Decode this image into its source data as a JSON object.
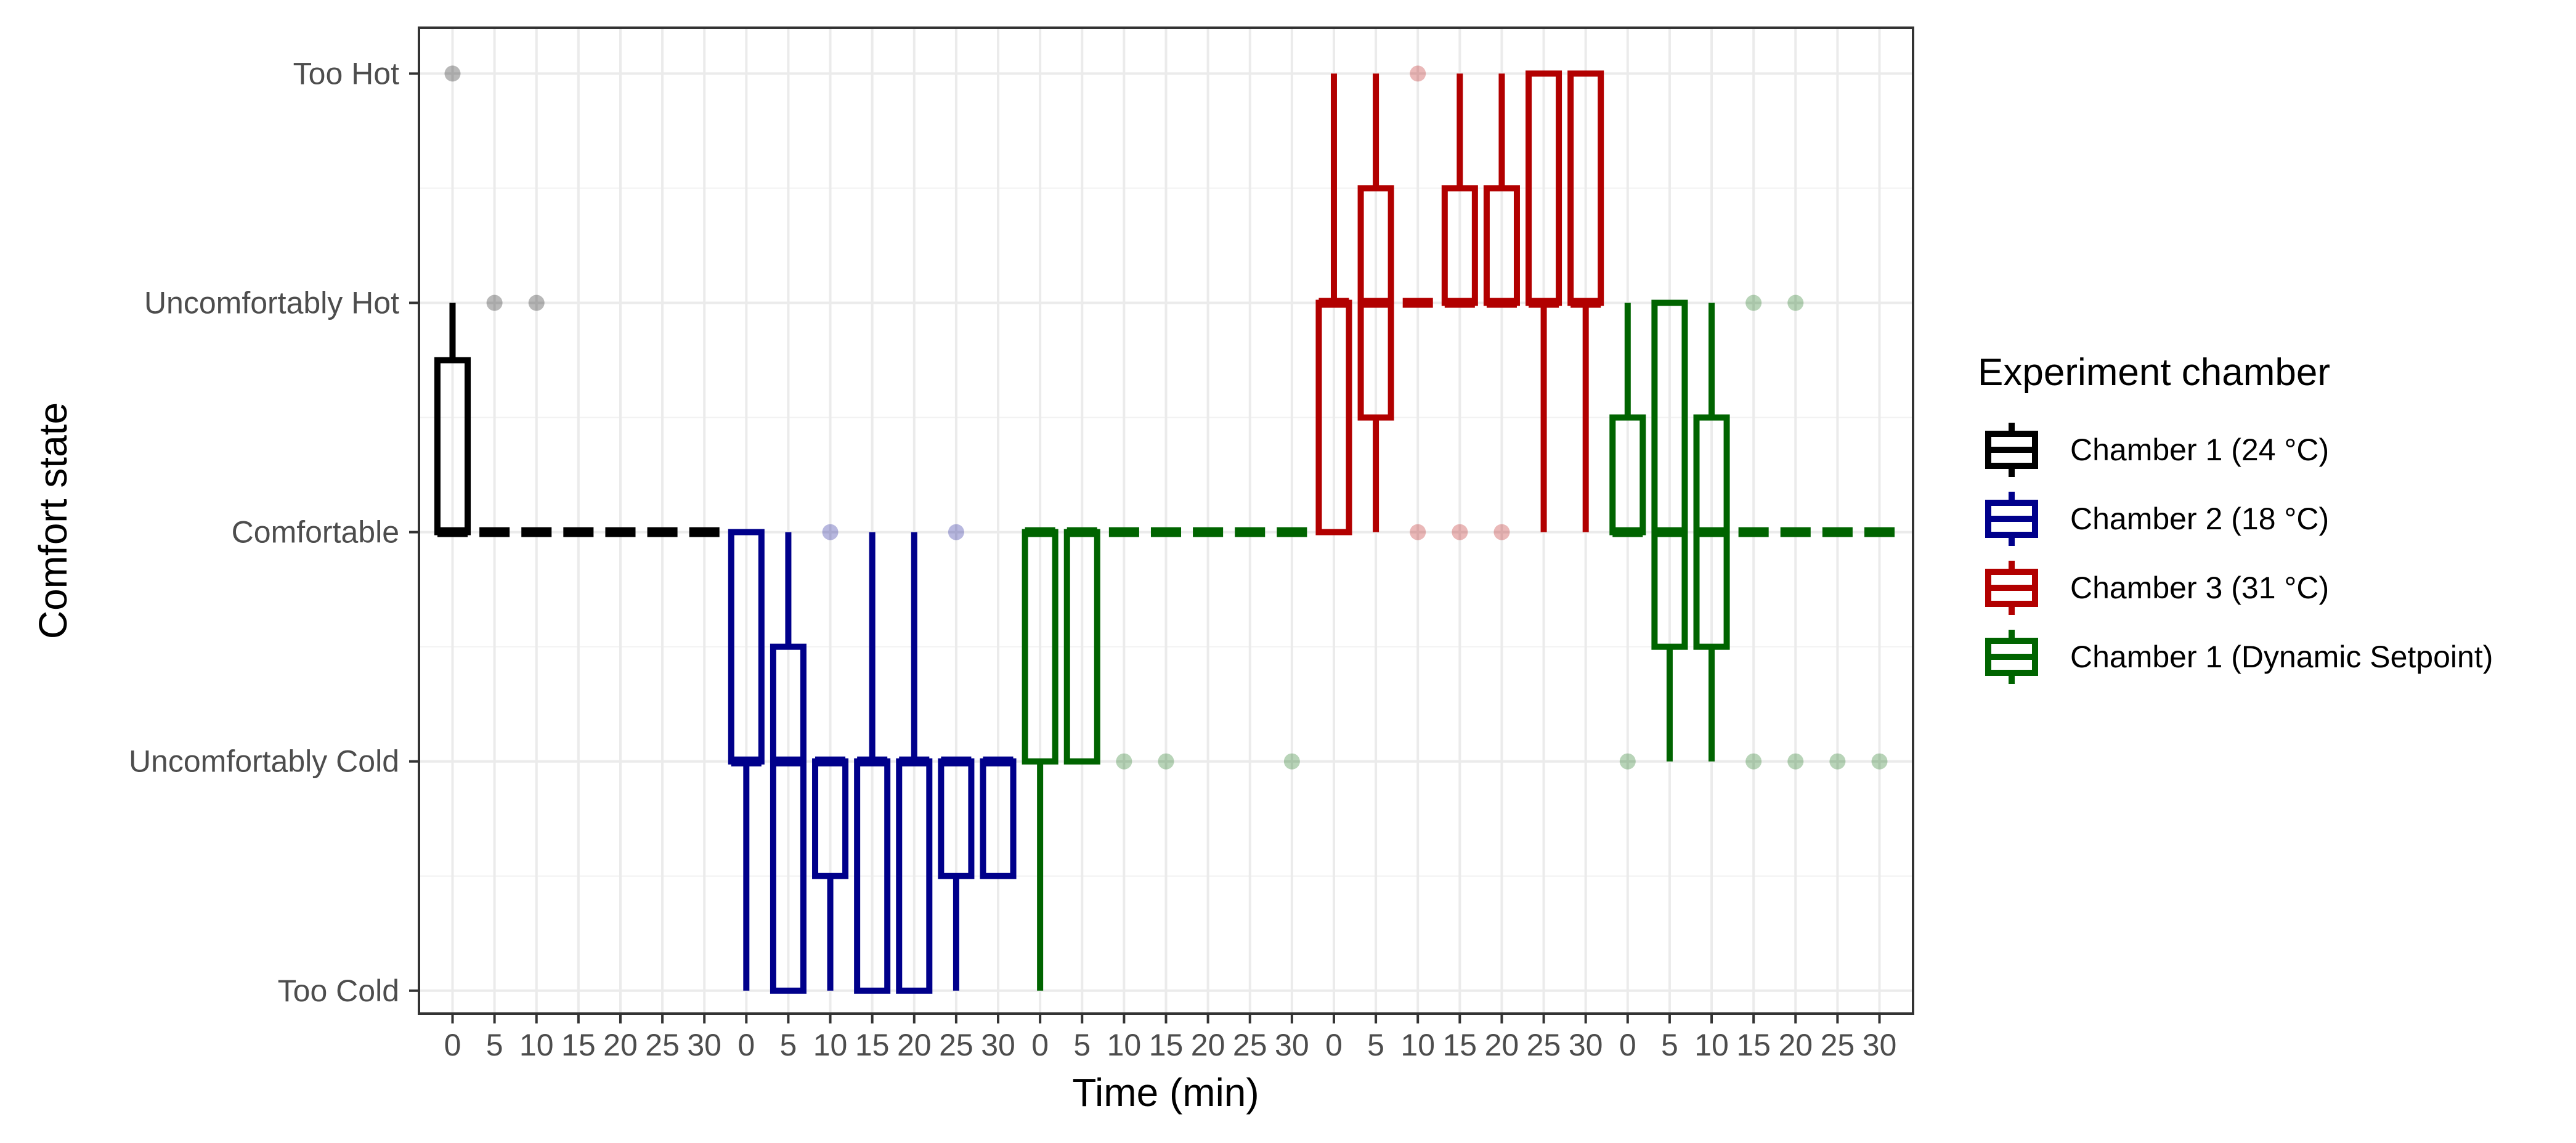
{
  "chart_data": {
    "type": "boxplot",
    "xlabel": "Time (min)",
    "ylabel": "Comfort state",
    "y_categories": [
      "Too Cold",
      "Uncomfortably Cold",
      "Comfortable",
      "Uncomfortably Hot",
      "Too Hot"
    ],
    "x_tick_labels": [
      "0",
      "5",
      "10",
      "15",
      "20",
      "25",
      "30"
    ],
    "ylim": [
      -0.1,
      4.2
    ],
    "grid": true,
    "legend": {
      "title": "Experiment chamber",
      "placement": "right",
      "entries": [
        "Chamber 1 (24 °C)",
        "Chamber 2 (18 °C)",
        "Chamber 3 (31 °C)",
        "Chamber 1 (Dynamic Setpoint)"
      ]
    },
    "series": [
      {
        "name": "Chamber 1 (24 °C)",
        "color": "#000000",
        "boxes": [
          {
            "t": 0,
            "ymin": 2,
            "q1": 2,
            "median": 2,
            "q3": 2.75,
            "ymax": 3
          },
          {
            "t": 5,
            "ymin": 2,
            "q1": 2,
            "median": 2,
            "q3": 2,
            "ymax": 2
          },
          {
            "t": 10,
            "ymin": 2,
            "q1": 2,
            "median": 2,
            "q3": 2,
            "ymax": 2
          },
          {
            "t": 15,
            "ymin": 2,
            "q1": 2,
            "median": 2,
            "q3": 2,
            "ymax": 2
          },
          {
            "t": 20,
            "ymin": 2,
            "q1": 2,
            "median": 2,
            "q3": 2,
            "ymax": 2
          },
          {
            "t": 25,
            "ymin": 2,
            "q1": 2,
            "median": 2,
            "q3": 2,
            "ymax": 2
          },
          {
            "t": 30,
            "ymin": 2,
            "q1": 2,
            "median": 2,
            "q3": 2,
            "ymax": 2
          }
        ],
        "outliers": [
          {
            "t": 0,
            "y": 4
          },
          {
            "t": 5,
            "y": 3
          },
          {
            "t": 10,
            "y": 3
          }
        ]
      },
      {
        "name": "Chamber 2 (18 °C)",
        "color": "#00008b",
        "boxes": [
          {
            "t": 0,
            "ymin": 0,
            "q1": 1,
            "median": 1,
            "q3": 2,
            "ymax": 2
          },
          {
            "t": 5,
            "ymin": 0,
            "q1": 0,
            "median": 1,
            "q3": 1.5,
            "ymax": 2
          },
          {
            "t": 10,
            "ymin": 0,
            "q1": 0.5,
            "median": 1,
            "q3": 1,
            "ymax": 1
          },
          {
            "t": 15,
            "ymin": 0,
            "q1": 0,
            "median": 1,
            "q3": 1,
            "ymax": 2
          },
          {
            "t": 20,
            "ymin": 0,
            "q1": 0,
            "median": 1,
            "q3": 1,
            "ymax": 2
          },
          {
            "t": 25,
            "ymin": 0,
            "q1": 0.5,
            "median": 1,
            "q3": 1,
            "ymax": 1
          },
          {
            "t": 30,
            "ymin": 0.5,
            "q1": 0.5,
            "median": 1,
            "q3": 1,
            "ymax": 1
          }
        ],
        "outliers": [
          {
            "t": 10,
            "y": 2
          },
          {
            "t": 25,
            "y": 2
          }
        ]
      },
      {
        "name": "Chamber 1 (Dynamic Setpoint)",
        "color": "#006400",
        "boxes": [
          {
            "t": 0,
            "ymin": 0,
            "q1": 1,
            "median": 2,
            "q3": 2,
            "ymax": 2
          },
          {
            "t": 5,
            "ymin": 1,
            "q1": 1,
            "median": 2,
            "q3": 2,
            "ymax": 2
          },
          {
            "t": 10,
            "ymin": 2,
            "q1": 2,
            "median": 2,
            "q3": 2,
            "ymax": 2
          },
          {
            "t": 15,
            "ymin": 2,
            "q1": 2,
            "median": 2,
            "q3": 2,
            "ymax": 2
          },
          {
            "t": 20,
            "ymin": 2,
            "q1": 2,
            "median": 2,
            "q3": 2,
            "ymax": 2
          },
          {
            "t": 25,
            "ymin": 2,
            "q1": 2,
            "median": 2,
            "q3": 2,
            "ymax": 2
          },
          {
            "t": 30,
            "ymin": 2,
            "q1": 2,
            "median": 2,
            "q3": 2,
            "ymax": 2
          }
        ],
        "outliers": [
          {
            "t": 10,
            "y": 1
          },
          {
            "t": 15,
            "y": 1
          },
          {
            "t": 30,
            "y": 1
          }
        ]
      },
      {
        "name": "Chamber 3 (31 °C)",
        "color": "#b20000",
        "boxes": [
          {
            "t": 0,
            "ymin": 2,
            "q1": 2,
            "median": 3,
            "q3": 3,
            "ymax": 4
          },
          {
            "t": 5,
            "ymin": 2,
            "q1": 2.5,
            "median": 3,
            "q3": 3.5,
            "ymax": 4
          },
          {
            "t": 10,
            "ymin": 3,
            "q1": 3,
            "median": 3,
            "q3": 3,
            "ymax": 3
          },
          {
            "t": 15,
            "ymin": 3,
            "q1": 3,
            "median": 3,
            "q3": 3.5,
            "ymax": 4
          },
          {
            "t": 20,
            "ymin": 3,
            "q1": 3,
            "median": 3,
            "q3": 3.5,
            "ymax": 4
          },
          {
            "t": 25,
            "ymin": 2,
            "q1": 3,
            "median": 3,
            "q3": 4,
            "ymax": 4
          },
          {
            "t": 30,
            "ymin": 2,
            "q1": 3,
            "median": 3,
            "q3": 4,
            "ymax": 4
          }
        ],
        "outliers": [
          {
            "t": 10,
            "y": 4
          },
          {
            "t": 10,
            "y": 2
          },
          {
            "t": 15,
            "y": 2
          },
          {
            "t": 20,
            "y": 2
          }
        ]
      },
      {
        "name": "Chamber 1 (Dynamic Setpoint)",
        "color": "#006400",
        "boxes": [
          {
            "t": 0,
            "ymin": 2,
            "q1": 2,
            "median": 2,
            "q3": 2.5,
            "ymax": 3
          },
          {
            "t": 5,
            "ymin": 1,
            "q1": 1.5,
            "median": 2,
            "q3": 3,
            "ymax": 3
          },
          {
            "t": 10,
            "ymin": 1,
            "q1": 1.5,
            "median": 2,
            "q3": 2.5,
            "ymax": 3
          },
          {
            "t": 15,
            "ymin": 2,
            "q1": 2,
            "median": 2,
            "q3": 2,
            "ymax": 2
          },
          {
            "t": 20,
            "ymin": 2,
            "q1": 2,
            "median": 2,
            "q3": 2,
            "ymax": 2
          },
          {
            "t": 25,
            "ymin": 2,
            "q1": 2,
            "median": 2,
            "q3": 2,
            "ymax": 2
          },
          {
            "t": 30,
            "ymin": 2,
            "q1": 2,
            "median": 2,
            "q3": 2,
            "ymax": 2
          }
        ],
        "outliers": [
          {
            "t": 0,
            "y": 1
          },
          {
            "t": 15,
            "y": 3
          },
          {
            "t": 20,
            "y": 3
          },
          {
            "t": 15,
            "y": 1
          },
          {
            "t": 20,
            "y": 1
          },
          {
            "t": 25,
            "y": 1
          },
          {
            "t": 30,
            "y": 1
          }
        ]
      }
    ]
  }
}
